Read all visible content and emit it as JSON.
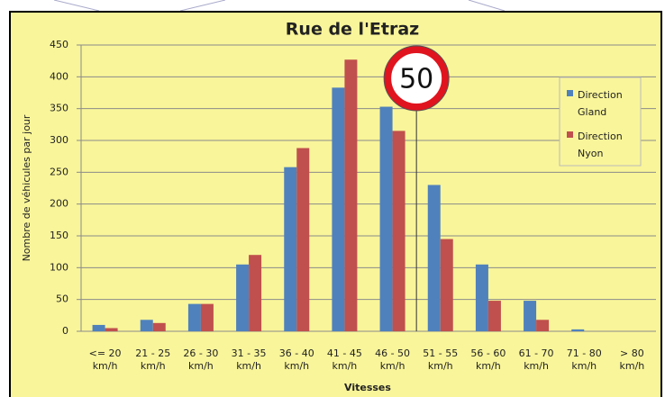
{
  "chart_data": {
    "type": "bar",
    "title": "Rue de l'Etraz",
    "y_label": "Nombre de véhicules par jour",
    "x_label": "Vitesses",
    "annotation": "50",
    "categories": [
      "<= 20\nkm/h",
      "21 - 25\nkm/h",
      "26 - 30\nkm/h",
      "31 - 35\nkm/h",
      "36 - 40\nkm/h",
      "41 - 45\nkm/h",
      "46 - 50\nkm/h",
      "51 - 55\nkm/h",
      "56 - 60\nkm/h",
      "61 - 70\nkm/h",
      "71 - 80\nkm/h",
      "> 80\nkm/h"
    ],
    "series": [
      {
        "name": "Direction\nGland",
        "color": "#4f81bd",
        "values": [
          10,
          18,
          43,
          105,
          258,
          383,
          353,
          230,
          105,
          48,
          3,
          0
        ]
      },
      {
        "name": "Direction\nNyon",
        "color": "#c0504d",
        "values": [
          5,
          13,
          43,
          120,
          288,
          427,
          315,
          145,
          48,
          18,
          0,
          0
        ]
      }
    ],
    "ylim": [
      0,
      450
    ],
    "yticks": [
      0,
      50,
      100,
      150,
      200,
      250,
      300,
      350,
      400,
      450
    ],
    "grid": true,
    "legend": "right"
  }
}
